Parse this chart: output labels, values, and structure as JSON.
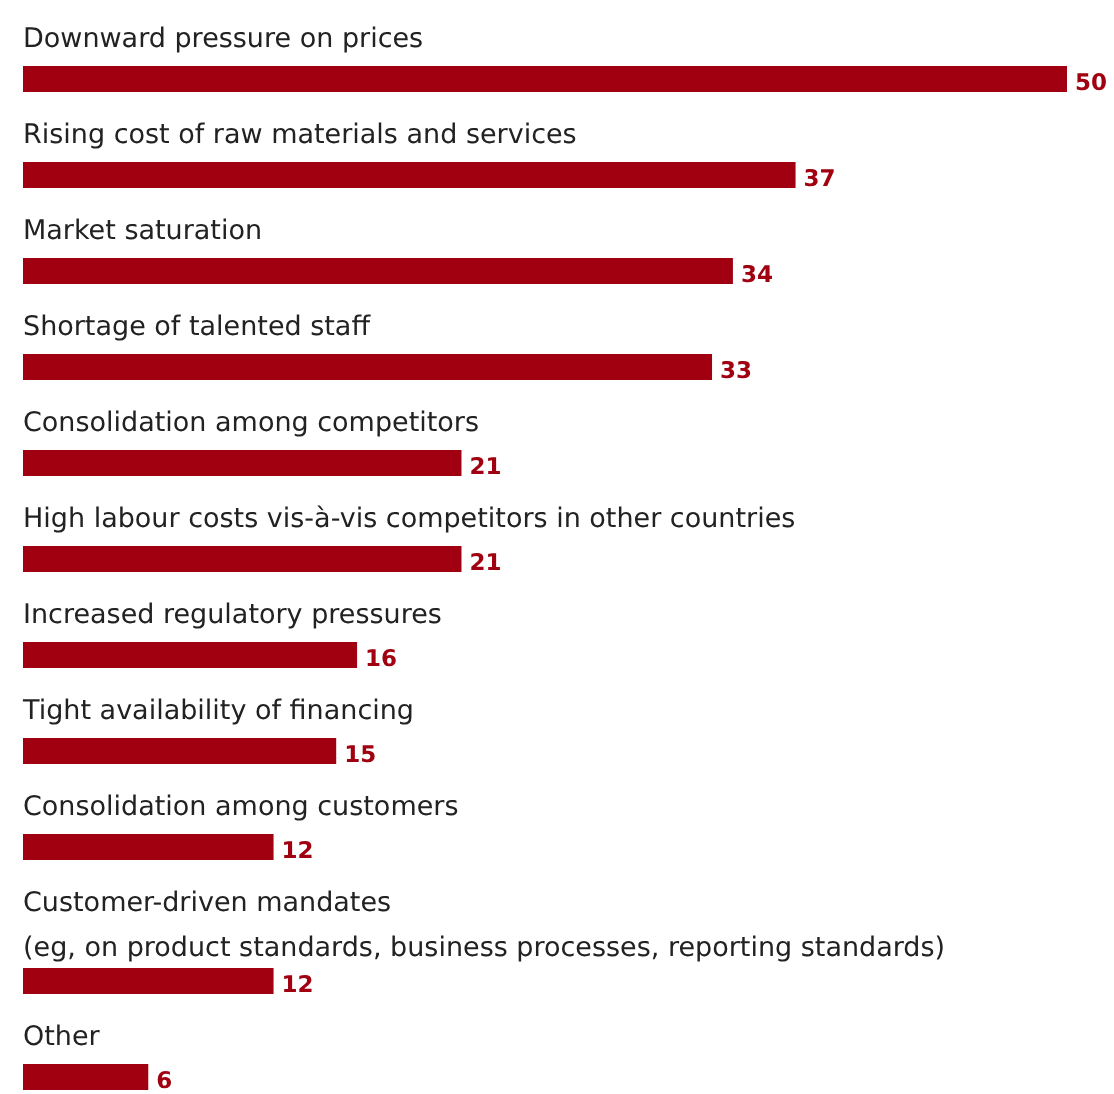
{
  "chart_data": {
    "type": "bar",
    "orientation": "horizontal",
    "data_labels": true,
    "color": "#a0000f",
    "categories": [
      "Downward pressure on prices",
      "Rising cost of raw materials and services",
      "Market saturation",
      "Shortage of talented staff",
      "Consolidation among competitors",
      "High labour costs vis-à-vis competitors in other countries",
      "Increased regulatory pressures",
      "Tight availability of financing",
      "Consolidation among customers",
      "Customer-driven mandates\n(eg, on product standards, business processes, reporting standards)",
      "Other"
    ],
    "values": [
      50,
      37,
      34,
      33,
      21,
      21,
      16,
      15,
      12,
      12,
      6
    ]
  }
}
